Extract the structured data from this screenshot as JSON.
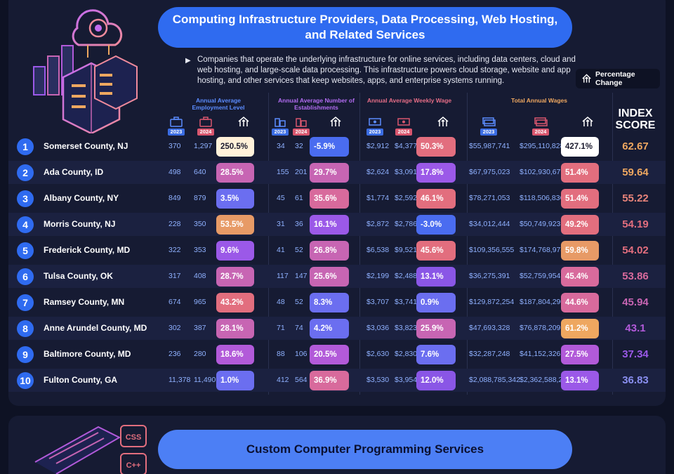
{
  "section1": {
    "title": "Computing Infrastructure Providers, Data Processing, Web Hosting, and Related Services",
    "description": "Companies that operate the underlying infrastructure for online services, including data centers, cloud and web hosting, and large-scale data processing. This infrastructure powers cloud storage, website and app hosting, and other services that keep websites, apps, and enterprise systems running.",
    "legend_label": "Percentage Change",
    "groups": {
      "employment": "Annual Average Employment Level",
      "establishments": "Annual Average Number of Establishments",
      "wage": "Annual Average Weekly Wage",
      "total_wages": "Total Annual Wages"
    },
    "year_a": "2023",
    "year_b": "2024",
    "index_label": "INDEX SCORE"
  },
  "chart_data": {
    "type": "table",
    "columns": [
      "Rank",
      "County",
      "Employment 2023",
      "Employment 2024",
      "Employment % Change",
      "Establishments 2023",
      "Establishments 2024",
      "Establishments % Change",
      "Weekly Wage 2023",
      "Weekly Wage 2024",
      "Weekly Wage % Change",
      "Total Wages 2023",
      "Total Wages 2024",
      "Total Wages % Change",
      "Index Score"
    ],
    "rows": [
      {
        "rank": "1",
        "county": "Somerset County, NJ",
        "emp23": "370",
        "emp24": "1,297",
        "emp_pct": "250.5%",
        "est23": "34",
        "est24": "32",
        "est_pct": "-5.9%",
        "wage23": "$2,912",
        "wage24": "$4,377",
        "wage_pct": "50.3%",
        "tot23": "$55,987,741",
        "tot24": "$295,110,828",
        "tot_pct": "427.1%",
        "score": "62.67"
      },
      {
        "rank": "2",
        "county": "Ada County, ID",
        "emp23": "498",
        "emp24": "640",
        "emp_pct": "28.5%",
        "est23": "155",
        "est24": "201",
        "est_pct": "29.7%",
        "wage23": "$2,624",
        "wage24": "$3,091",
        "wage_pct": "17.8%",
        "tot23": "$67,975,023",
        "tot24": "$102,930,679",
        "tot_pct": "51.4%",
        "score": "59.64"
      },
      {
        "rank": "3",
        "county": "Albany County, NY",
        "emp23": "849",
        "emp24": "879",
        "emp_pct": "3.5%",
        "est23": "45",
        "est24": "61",
        "est_pct": "35.6%",
        "wage23": "$1,774",
        "wage24": "$2,592",
        "wage_pct": "46.1%",
        "tot23": "$78,271,053",
        "tot24": "$118,506,836",
        "tot_pct": "51.4%",
        "score": "55.22"
      },
      {
        "rank": "4",
        "county": "Morris County, NJ",
        "emp23": "228",
        "emp24": "350",
        "emp_pct": "53.5%",
        "est23": "31",
        "est24": "36",
        "est_pct": "16.1%",
        "wage23": "$2,872",
        "wage24": "$2,786",
        "wage_pct": "-3.0%",
        "tot23": "$34,012,444",
        "tot24": "$50,749,923",
        "tot_pct": "49.2%",
        "score": "54.19"
      },
      {
        "rank": "5",
        "county": "Frederick County, MD",
        "emp23": "322",
        "emp24": "353",
        "emp_pct": "9.6%",
        "est23": "41",
        "est24": "52",
        "est_pct": "26.8%",
        "wage23": "$6,538",
        "wage24": "$9,521",
        "wage_pct": "45.6%",
        "tot23": "$109,356,555",
        "tot24": "$174,768,978",
        "tot_pct": "59.8%",
        "score": "54.02"
      },
      {
        "rank": "6",
        "county": "Tulsa County, OK",
        "emp23": "317",
        "emp24": "408",
        "emp_pct": "28.7%",
        "est23": "117",
        "est24": "147",
        "est_pct": "25.6%",
        "wage23": "$2,199",
        "wage24": "$2,488",
        "wage_pct": "13.1%",
        "tot23": "$36,275,391",
        "tot24": "$52,759,954",
        "tot_pct": "45.4%",
        "score": "53.86"
      },
      {
        "rank": "7",
        "county": "Ramsey County, MN",
        "emp23": "674",
        "emp24": "965",
        "emp_pct": "43.2%",
        "est23": "48",
        "est24": "52",
        "est_pct": "8.3%",
        "wage23": "$3,707",
        "wage24": "$3,741",
        "wage_pct": "0.9%",
        "tot23": "$129,872,254",
        "tot24": "$187,804,290",
        "tot_pct": "44.6%",
        "score": "45.94"
      },
      {
        "rank": "8",
        "county": "Anne Arundel County, MD",
        "emp23": "302",
        "emp24": "387",
        "emp_pct": "28.1%",
        "est23": "71",
        "est24": "74",
        "est_pct": "4.2%",
        "wage23": "$3,036",
        "wage24": "$3,823",
        "wage_pct": "25.9%",
        "tot23": "$47,693,328",
        "tot24": "$76,878,209",
        "tot_pct": "61.2%",
        "score": "43.1"
      },
      {
        "rank": "9",
        "county": "Baltimore County, MD",
        "emp23": "236",
        "emp24": "280",
        "emp_pct": "18.6%",
        "est23": "88",
        "est24": "106",
        "est_pct": "20.5%",
        "wage23": "$2,630",
        "wage24": "$2,830",
        "wage_pct": "7.6%",
        "tot23": "$32,287,248",
        "tot24": "$41,152,326",
        "tot_pct": "27.5%",
        "score": "37.34"
      },
      {
        "rank": "10",
        "county": "Fulton County, GA",
        "emp23": "11,378",
        "emp24": "11,490",
        "emp_pct": "1.0%",
        "est23": "412",
        "est24": "564",
        "est_pct": "36.9%",
        "wage23": "$3,530",
        "wage24": "$3,954",
        "wage_pct": "12.0%",
        "tot23": "$2,088,785,342",
        "tot24": "$2,362,588,249",
        "tot_pct": "13.1%",
        "score": "36.83"
      }
    ]
  },
  "pill_colors": {
    "emp_pct": [
      "#fff1d9",
      "#c765b3",
      "#6b6ef0",
      "#e79a66",
      "#9b59e8",
      "#c765b3",
      "#e26e7e",
      "#c765b3",
      "#b25ad9",
      "#6b6ef0"
    ],
    "est_pct": [
      "#4a6cf0",
      "#c765b3",
      "#d86a9c",
      "#9b59e8",
      "#c765b3",
      "#c765b3",
      "#6b6ef0",
      "#6b6ef0",
      "#b25ad9",
      "#d86a9c"
    ],
    "wage_pct": [
      "#e26e7e",
      "#9b59e8",
      "#e26e7e",
      "#4a6cf0",
      "#e26e7e",
      "#8a56e6",
      "#6b6ef0",
      "#c765b3",
      "#6b6ef0",
      "#8a56e6"
    ],
    "tot_pct": [
      "#ffffff",
      "#e26e7e",
      "#e26e7e",
      "#e26e7e",
      "#e79a66",
      "#d86a9c",
      "#d86a9c",
      "#eea760",
      "#b25ad9",
      "#9b59e8"
    ]
  },
  "score_colors": [
    "#eea760",
    "#eea760",
    "#e7837a",
    "#e26e7e",
    "#e26e7e",
    "#d86a9c",
    "#c765b3",
    "#b25ad9",
    "#9b59e8",
    "#8a8ff0"
  ],
  "section2": {
    "title": "Custom Computer Programming Services",
    "badge_css": "CSS",
    "badge_cpp": "C++"
  }
}
